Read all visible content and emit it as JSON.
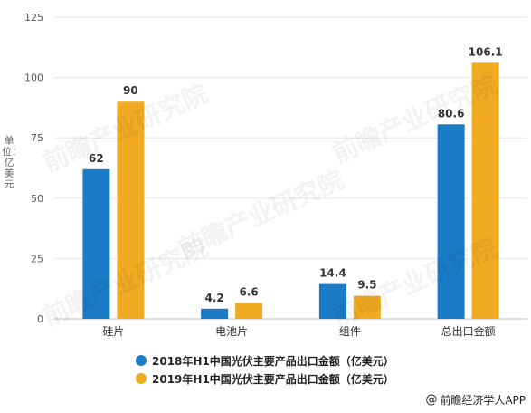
{
  "chart_data": {
    "type": "bar",
    "categories": [
      "硅片",
      "电池片",
      "组件",
      "总出口金额"
    ],
    "series": [
      {
        "name": "2018年H1中国光伏主要产品出口金额（亿美元）",
        "values": [
          62,
          4.2,
          14.4,
          80.6
        ],
        "color": "#1a7bc6"
      },
      {
        "name": "2019年H1中国光伏主要产品出口金额（亿美元）",
        "values": [
          90,
          6.6,
          9.5,
          106.1
        ],
        "color": "#f0ab22"
      }
    ],
    "data_labels": [
      [
        "62",
        "4.2",
        "14.4",
        "80.6"
      ],
      [
        "90",
        "6.6",
        "9.5",
        "106.1"
      ]
    ],
    "ylabel": "单位：亿美元",
    "ylim": [
      0,
      125
    ],
    "yticks": [
      0,
      25,
      50,
      75,
      100,
      125
    ],
    "grid": true,
    "legend_position": "bottom"
  },
  "source": "前瞻经济学人APP",
  "watermark": "前瞻产业研究院"
}
